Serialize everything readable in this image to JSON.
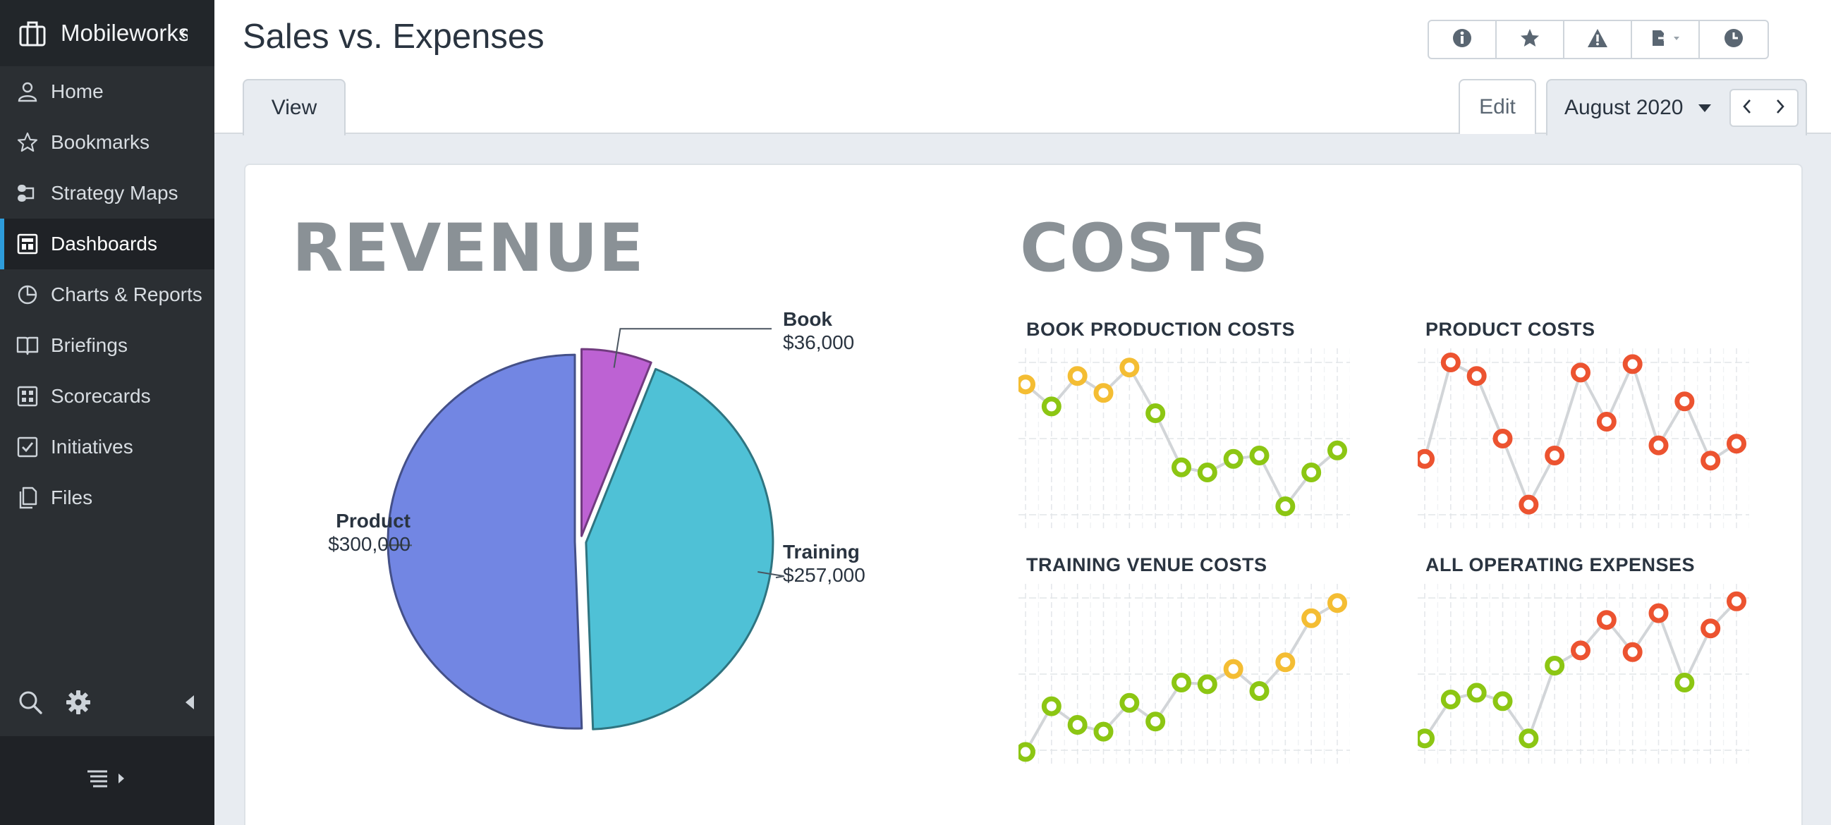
{
  "app": {
    "name": "Mobileworks",
    "collapse_glyph": "‹"
  },
  "sidebar": {
    "items": [
      {
        "label": "Home",
        "icon": "person-icon",
        "active": false
      },
      {
        "label": "Bookmarks",
        "icon": "star-icon",
        "active": false
      },
      {
        "label": "Strategy Maps",
        "icon": "strategy-map-icon",
        "active": false
      },
      {
        "label": "Dashboards",
        "icon": "dashboard-icon",
        "active": true
      },
      {
        "label": "Charts & Reports",
        "icon": "pie-chart-icon",
        "active": false
      },
      {
        "label": "Briefings",
        "icon": "book-icon",
        "active": false
      },
      {
        "label": "Scorecards",
        "icon": "scorecard-icon",
        "active": false
      },
      {
        "label": "Initiatives",
        "icon": "checkbox-icon",
        "active": false
      },
      {
        "label": "Files",
        "icon": "files-icon",
        "active": false
      }
    ],
    "tools": [
      "search-icon",
      "gear-icon",
      "triangle-left-icon"
    ],
    "footer_icon": "list-expand-icon"
  },
  "header": {
    "title": "Sales vs. Expenses",
    "toolbar": [
      "info-icon",
      "star-icon",
      "warning-icon",
      "export-icon",
      "clock-icon"
    ],
    "tab_view": "View",
    "edit_label": "Edit",
    "period": "August 2020"
  },
  "colors": {
    "accent": "#2d9cdb",
    "pie_book": "#bd62d3",
    "pie_training": "#4fc1d6",
    "pie_product": "#7286e3",
    "good": "#8cc613",
    "warn": "#f4bd33",
    "bad": "#ec5330"
  },
  "revenue": {
    "title": "REVENUE",
    "labels": [
      {
        "name": "Book",
        "value": "$36,000"
      },
      {
        "name": "Training",
        "value": "$257,000"
      },
      {
        "name": "Product",
        "value": "$300,000"
      }
    ]
  },
  "costs": {
    "title": "COSTS",
    "charts": [
      {
        "title": "BOOK PRODUCTION COSTS"
      },
      {
        "title": "PRODUCT COSTS"
      },
      {
        "title": "TRAINING VENUE COSTS"
      },
      {
        "title": "ALL OPERATING EXPENSES"
      }
    ]
  },
  "chart_data": [
    {
      "type": "pie",
      "title": "REVENUE",
      "categories": [
        "Book",
        "Training",
        "Product"
      ],
      "values": [
        36000,
        257000,
        300000
      ],
      "colors": [
        "#bd62d3",
        "#4fc1d6",
        "#7286e3"
      ]
    },
    {
      "type": "line",
      "title": "BOOK PRODUCTION COSTS",
      "values": [
        0.82,
        0.69,
        0.87,
        0.77,
        0.92,
        0.65,
        0.33,
        0.3,
        0.38,
        0.4,
        0.1,
        0.3,
        0.43
      ],
      "status": [
        "warn",
        "good",
        "warn",
        "warn",
        "warn",
        "good",
        "good",
        "good",
        "good",
        "good",
        "good",
        "good",
        "good"
      ],
      "ylim": [
        0,
        1
      ]
    },
    {
      "type": "line",
      "title": "PRODUCT COSTS",
      "values": [
        0.38,
        0.95,
        0.87,
        0.5,
        0.11,
        0.4,
        0.89,
        0.6,
        0.94,
        0.46,
        0.72,
        0.37,
        0.47
      ],
      "status": [
        "bad",
        "bad",
        "bad",
        "bad",
        "bad",
        "bad",
        "bad",
        "bad",
        "bad",
        "bad",
        "bad",
        "bad",
        "bad"
      ],
      "ylim": [
        0,
        1
      ]
    },
    {
      "type": "line",
      "title": "TRAINING VENUE COSTS",
      "values": [
        0.04,
        0.31,
        0.2,
        0.16,
        0.33,
        0.22,
        0.45,
        0.44,
        0.53,
        0.4,
        0.57,
        0.83,
        0.92
      ],
      "status": [
        "good",
        "good",
        "good",
        "good",
        "good",
        "good",
        "good",
        "good",
        "warn",
        "good",
        "warn",
        "warn",
        "warn"
      ],
      "ylim": [
        0,
        1
      ]
    },
    {
      "type": "line",
      "title": "ALL OPERATING EXPENSES",
      "values": [
        0.12,
        0.35,
        0.39,
        0.34,
        0.12,
        0.55,
        0.64,
        0.82,
        0.63,
        0.86,
        0.45,
        0.77,
        0.93
      ],
      "status": [
        "good",
        "good",
        "good",
        "good",
        "good",
        "good",
        "bad",
        "bad",
        "bad",
        "bad",
        "good",
        "bad",
        "bad"
      ],
      "ylim": [
        0,
        1
      ]
    }
  ]
}
